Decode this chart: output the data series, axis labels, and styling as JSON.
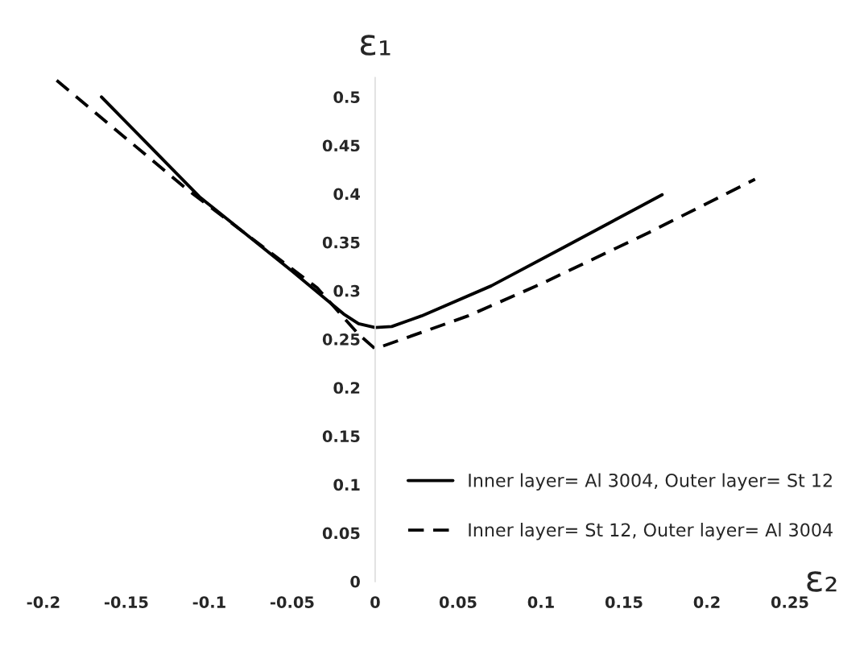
{
  "chart_data": {
    "type": "line",
    "xlabel": "ε₂",
    "ylabel": "ε₁",
    "xlim": [
      -0.2,
      0.25
    ],
    "ylim": [
      0,
      0.52
    ],
    "xticks": [
      -0.2,
      -0.15,
      -0.1,
      -0.05,
      0,
      0.05,
      0.1,
      0.15,
      0.2,
      0.25
    ],
    "yticks": [
      0,
      0.05,
      0.1,
      0.15,
      0.2,
      0.25,
      0.3,
      0.35,
      0.4,
      0.45,
      0.5
    ],
    "legend": "bottom right",
    "grid": false,
    "series": [
      {
        "name": "Inner layer= Al 3004, Outer layer= St 12",
        "color": "#000000",
        "line_style": "solid",
        "x": [
          -0.165,
          -0.106,
          -0.05,
          -0.019,
          -0.01,
          0,
          0.01,
          0.028,
          0.07,
          0.114,
          0.173
        ],
        "values": [
          0.5,
          0.397,
          0.32,
          0.276,
          0.266,
          0.262,
          0.263,
          0.274,
          0.305,
          0.345,
          0.399
        ]
      },
      {
        "name": "Inner layer= St 12, Outer layer= Al 3004",
        "color": "#000000",
        "line_style": "dashed",
        "x": [
          -0.192,
          -0.113,
          -0.035,
          -0.01,
          0,
          0.056,
          0.1,
          0.165,
          0.229
        ],
        "values": [
          0.517,
          0.404,
          0.303,
          0.255,
          0.24,
          0.274,
          0.307,
          0.36,
          0.415
        ]
      }
    ]
  }
}
